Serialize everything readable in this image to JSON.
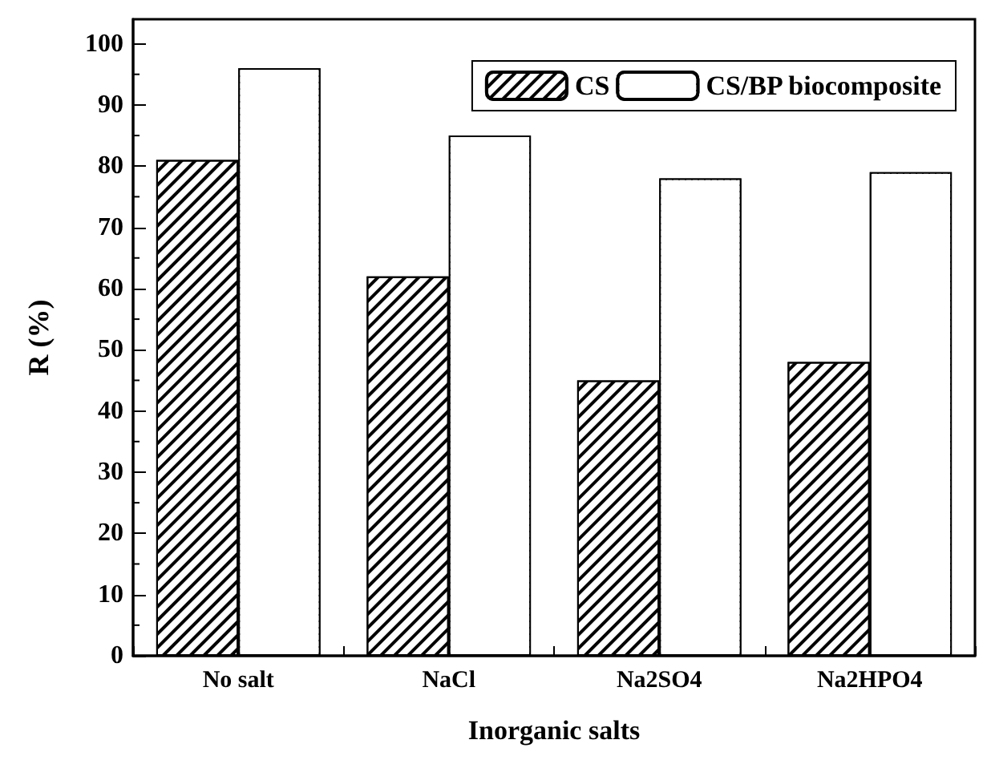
{
  "chart_data": {
    "type": "bar",
    "xlabel": "Inorganic salts",
    "ylabel": "R (%)",
    "categories": [
      "No salt",
      "NaCl",
      "Na2SO4",
      "Na2HPO4"
    ],
    "series": [
      {
        "name": "CS",
        "color": "#ffffff",
        "values": [
          81,
          62,
          45,
          48
        ]
      },
      {
        "name": "CS/BP biocomposite",
        "color": "#ffffff",
        "values": [
          96,
          85,
          78,
          79
        ]
      }
    ],
    "ylim": [
      0,
      104
    ],
    "yticks": [
      0,
      10,
      20,
      30,
      40,
      50,
      60,
      70,
      80,
      90,
      100
    ],
    "grid": false,
    "legend": "top right"
  }
}
